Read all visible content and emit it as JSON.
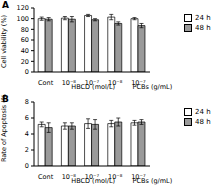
{
  "chart_data": [
    {
      "type": "bar",
      "title": "A",
      "y_label": "Cell viability (%)",
      "categories": [
        "Cont",
        "10⁻⁸",
        "10⁻⁷",
        "10⁻⁸",
        "10⁻⁷"
      ],
      "annotations": [
        "HBCD (mol/L)",
        "PCBs (g/mL)"
      ],
      "series": [
        {
          "name": "24 h",
          "color": "#ffffff",
          "values": [
            100,
            101,
            106,
            103,
            100
          ],
          "errors": [
            3,
            3,
            2,
            5,
            2
          ]
        },
        {
          "name": "48 h",
          "color": "#9a9a9a",
          "values": [
            99,
            99,
            98,
            91,
            87
          ],
          "errors": [
            3,
            5,
            2,
            3,
            4
          ]
        }
      ],
      "ylim": [
        0,
        120
      ],
      "yticks": [
        0,
        20,
        40,
        60,
        80,
        100,
        120
      ],
      "legend": "right"
    },
    {
      "type": "bar",
      "title": "B",
      "y_label": "Rate of Apoptosis (%)",
      "categories": [
        "Cont",
        "10⁻⁸",
        "10⁻⁷",
        "10⁻⁸",
        "10⁻⁷"
      ],
      "annotations": [
        "HBCD (mol/L)",
        "PCBs (g/mL)"
      ],
      "series": [
        {
          "name": "24 h",
          "color": "#ffffff",
          "values": [
            5.2,
            5.0,
            5.3,
            5.3,
            5.4
          ],
          "errors": [
            0.3,
            0.4,
            0.6,
            0.4,
            0.3
          ]
        },
        {
          "name": "48 h",
          "color": "#9a9a9a",
          "values": [
            4.8,
            5.0,
            5.2,
            5.5,
            5.5
          ],
          "errors": [
            0.6,
            0.4,
            0.6,
            0.5,
            0.3
          ]
        }
      ],
      "ylim": [
        0,
        8
      ],
      "yticks": [
        0,
        2,
        4,
        6,
        8
      ],
      "legend": "right"
    }
  ]
}
